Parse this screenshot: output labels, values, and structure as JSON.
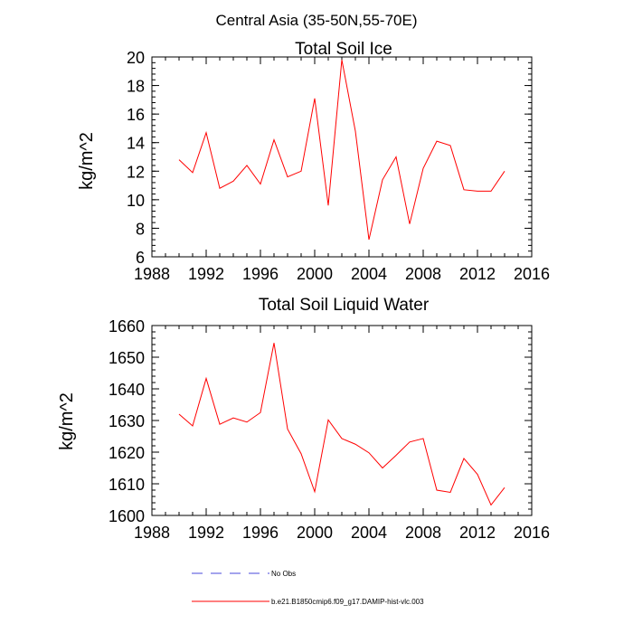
{
  "figure_title": "Central Asia (35-50N,55-70E)",
  "chart_data": [
    {
      "type": "line",
      "title": "Total Soil Ice",
      "xlabel": "",
      "ylabel": "kg/m^2",
      "xlim": [
        1988,
        2016
      ],
      "ylim": [
        6,
        20
      ],
      "xticks": [
        1988,
        1992,
        1996,
        2000,
        2004,
        2008,
        2012,
        2016
      ],
      "yticks": [
        6,
        8,
        10,
        12,
        14,
        16,
        18,
        20
      ],
      "series": [
        {
          "name": "b.e21.B1850cmip6.f09_g17.DAMIP-hist-vlc.003",
          "color": "#ff0000",
          "x": [
            1990,
            1991,
            1992,
            1993,
            1994,
            1995,
            1996,
            1997,
            1998,
            1999,
            2000,
            2001,
            2002,
            2003,
            2004,
            2005,
            2006,
            2007,
            2008,
            2009,
            2010,
            2011,
            2012,
            2013,
            2014
          ],
          "values": [
            12.8,
            11.9,
            14.7,
            10.8,
            11.3,
            12.4,
            11.1,
            14.2,
            11.6,
            12.0,
            17.1,
            9.6,
            19.8,
            14.8,
            7.2,
            11.4,
            13.0,
            8.3,
            12.2,
            14.1,
            13.8,
            10.7,
            10.6,
            10.6,
            12.0
          ]
        }
      ]
    },
    {
      "type": "line",
      "title": "Total Soil Liquid Water",
      "xlabel": "",
      "ylabel": "kg/m^2",
      "xlim": [
        1988,
        2016
      ],
      "ylim": [
        1600,
        1660
      ],
      "xticks": [
        1988,
        1992,
        1996,
        2000,
        2004,
        2008,
        2012,
        2016
      ],
      "yticks": [
        1600,
        1610,
        1620,
        1630,
        1640,
        1650,
        1660
      ],
      "series": [
        {
          "name": "b.e21.B1850cmip6.f09_g17.DAMIP-hist-vlc.003",
          "color": "#ff0000",
          "x": [
            1990,
            1991,
            1992,
            1993,
            1994,
            1995,
            1996,
            1997,
            1998,
            1999,
            2000,
            2001,
            2002,
            2003,
            2004,
            2005,
            2006,
            2007,
            2008,
            2009,
            2010,
            2011,
            2012,
            2013,
            2014
          ],
          "values": [
            1632,
            1628.3,
            1643.3,
            1628.8,
            1630.8,
            1629.5,
            1632.5,
            1654.5,
            1627.3,
            1619.5,
            1607.5,
            1630.2,
            1624.3,
            1622.5,
            1619.8,
            1615,
            1619,
            1623.2,
            1624.3,
            1608,
            1607.3,
            1618,
            1613,
            1603.3,
            1608.8
          ]
        }
      ]
    }
  ],
  "legend": [
    {
      "label": "No Obs",
      "color": "#4a4adb",
      "style": "dashed"
    },
    {
      "label": "b.e21.B1850cmip6.f09_g17.DAMIP-hist-vlc.003",
      "color": "#ff0000",
      "style": "solid"
    }
  ]
}
